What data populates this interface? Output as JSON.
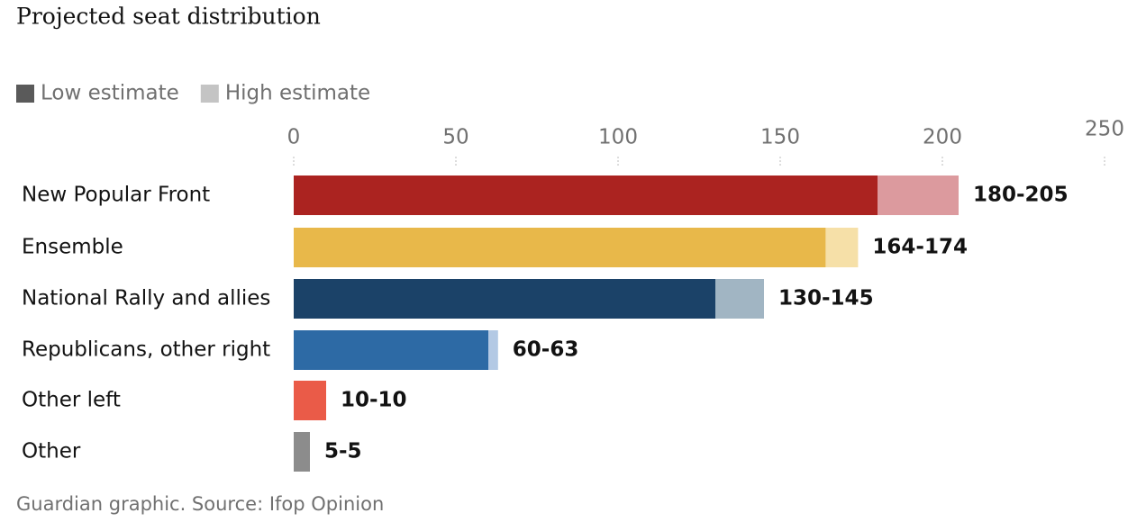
{
  "chart_data": {
    "type": "bar",
    "orientation": "horizontal",
    "title": "Projected seat distribution",
    "source": "Guardian graphic. Source: Ifop Opinion",
    "categories": [
      "New Popular Front",
      "Ensemble",
      "National Rally and allies",
      "Republicans, other right",
      "Other left",
      "Other"
    ],
    "series": [
      {
        "name": "Low estimate",
        "color": "#5a5a5a",
        "values": [
          180,
          164,
          130,
          60,
          10,
          5
        ],
        "bar_colors": [
          "#ab2320",
          "#e8b84a",
          "#1b4268",
          "#2d6aa5",
          "#ea5b48",
          "#8c8c8c"
        ]
      },
      {
        "name": "High estimate",
        "color": "#c4c4c4",
        "values": [
          205,
          174,
          145,
          63,
          10,
          5
        ],
        "bar_colors": [
          "#dc9a9e",
          "#f6e0a8",
          "#a1b5c3",
          "#b3c9e4",
          "#ea5b48",
          "#8c8c8c"
        ]
      }
    ],
    "value_labels": [
      "180-205",
      "164-174",
      "130-145",
      "60-63",
      "10-10",
      "5-5"
    ],
    "xlim": [
      0,
      250
    ],
    "xticks": [
      0,
      50,
      100,
      150,
      200,
      250
    ]
  }
}
